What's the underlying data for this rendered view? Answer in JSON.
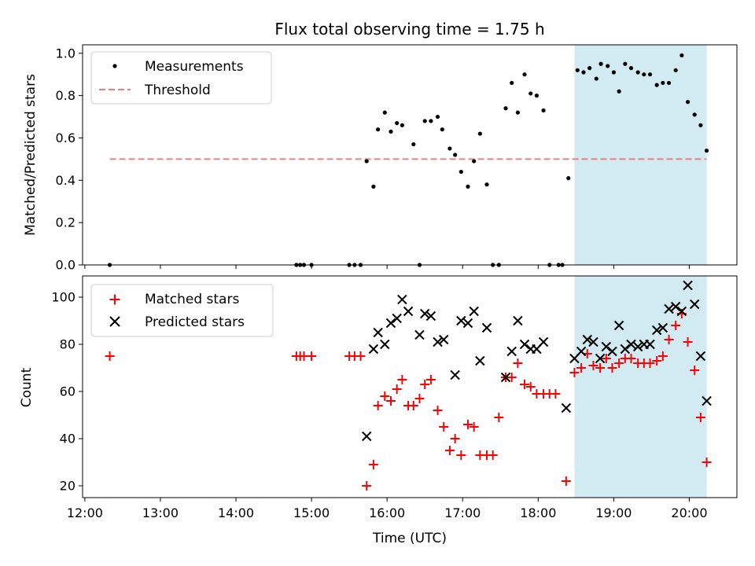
{
  "title": "Flux total observing time = 1.75 h",
  "xlabel": "Time (UTC)",
  "x_ticks": [
    "12:00",
    "13:00",
    "14:00",
    "15:00",
    "16:00",
    "17:00",
    "18:00",
    "19:00",
    "20:00"
  ],
  "colors": {
    "measurements": "#000000",
    "threshold": "#f08080",
    "matched": "#ff0000",
    "predicted": "#000000",
    "shaded": "#add8e6"
  },
  "chart_data": [
    {
      "type": "scatter",
      "ylabel": "Matched/Predicted stars",
      "xlim": [
        11.97,
        20.63
      ],
      "ylim": [
        0,
        1.04
      ],
      "y_ticks": [
        "0.0",
        "0.2",
        "0.4",
        "0.6",
        "0.8",
        "1.0"
      ],
      "shaded_region": {
        "x_start": 18.48,
        "x_end": 20.23
      },
      "legend": {
        "position": "upper left",
        "entries": [
          "Measurements",
          "Threshold"
        ]
      },
      "threshold": {
        "name": "Threshold",
        "y": 0.5,
        "x_start": 12.33,
        "x_end": 20.23,
        "style": "dashed"
      },
      "series": [
        {
          "name": "Measurements",
          "marker": "dot",
          "points": [
            [
              12.33,
              0.0
            ],
            [
              14.8,
              0.0
            ],
            [
              14.85,
              0.0
            ],
            [
              14.9,
              0.0
            ],
            [
              15.0,
              0.0
            ],
            [
              15.5,
              0.0
            ],
            [
              15.57,
              0.0
            ],
            [
              15.65,
              0.0
            ],
            [
              15.73,
              0.49
            ],
            [
              15.82,
              0.37
            ],
            [
              15.88,
              0.64
            ],
            [
              15.97,
              0.72
            ],
            [
              16.05,
              0.63
            ],
            [
              16.13,
              0.67
            ],
            [
              16.2,
              0.66
            ],
            [
              16.35,
              0.57
            ],
            [
              16.43,
              0.0
            ],
            [
              16.5,
              0.68
            ],
            [
              16.58,
              0.68
            ],
            [
              16.67,
              0.7
            ],
            [
              16.73,
              0.64
            ],
            [
              16.83,
              0.55
            ],
            [
              16.9,
              0.52
            ],
            [
              16.98,
              0.44
            ],
            [
              17.07,
              0.37
            ],
            [
              17.15,
              0.49
            ],
            [
              17.23,
              0.62
            ],
            [
              17.32,
              0.38
            ],
            [
              17.4,
              0.0
            ],
            [
              17.48,
              0.0
            ],
            [
              17.57,
              0.74
            ],
            [
              17.65,
              0.86
            ],
            [
              17.73,
              0.72
            ],
            [
              17.82,
              0.9
            ],
            [
              17.9,
              0.81
            ],
            [
              17.98,
              0.8
            ],
            [
              18.07,
              0.73
            ],
            [
              18.15,
              0.0
            ],
            [
              18.27,
              0.0
            ],
            [
              18.32,
              0.0
            ],
            [
              18.4,
              0.41
            ],
            [
              18.52,
              0.92
            ],
            [
              18.6,
              0.91
            ],
            [
              18.68,
              0.93
            ],
            [
              18.77,
              0.88
            ],
            [
              18.83,
              0.95
            ],
            [
              18.92,
              0.94
            ],
            [
              19.0,
              0.91
            ],
            [
              19.07,
              0.82
            ],
            [
              19.15,
              0.95
            ],
            [
              19.23,
              0.93
            ],
            [
              19.32,
              0.91
            ],
            [
              19.4,
              0.9
            ],
            [
              19.48,
              0.9
            ],
            [
              19.57,
              0.85
            ],
            [
              19.65,
              0.86
            ],
            [
              19.73,
              0.86
            ],
            [
              19.82,
              0.92
            ],
            [
              19.9,
              0.99
            ],
            [
              19.98,
              0.77
            ],
            [
              20.07,
              0.71
            ],
            [
              20.15,
              0.66
            ],
            [
              20.23,
              0.54
            ]
          ]
        }
      ]
    },
    {
      "type": "scatter",
      "ylabel": "Count",
      "xlim": [
        11.97,
        20.63
      ],
      "ylim": [
        15,
        109
      ],
      "y_ticks": [
        "20",
        "40",
        "60",
        "80",
        "100"
      ],
      "shaded_region": {
        "x_start": 18.48,
        "x_end": 20.23
      },
      "legend": {
        "position": "upper left",
        "entries": [
          "Matched stars",
          "Predicted stars"
        ]
      },
      "series": [
        {
          "name": "Matched stars",
          "marker": "plus",
          "points": [
            [
              12.33,
              75
            ],
            [
              14.8,
              75
            ],
            [
              14.85,
              75
            ],
            [
              14.9,
              75
            ],
            [
              15.0,
              75
            ],
            [
              15.5,
              75
            ],
            [
              15.57,
              75
            ],
            [
              15.65,
              75
            ],
            [
              15.73,
              20
            ],
            [
              15.82,
              29
            ],
            [
              15.88,
              54
            ],
            [
              15.97,
              58
            ],
            [
              16.05,
              56
            ],
            [
              16.13,
              61
            ],
            [
              16.2,
              65
            ],
            [
              16.28,
              54
            ],
            [
              16.35,
              54
            ],
            [
              16.43,
              57
            ],
            [
              16.5,
              63
            ],
            [
              16.58,
              65
            ],
            [
              16.67,
              52
            ],
            [
              16.75,
              45
            ],
            [
              16.83,
              35
            ],
            [
              16.9,
              40
            ],
            [
              16.98,
              33
            ],
            [
              17.07,
              46
            ],
            [
              17.15,
              45
            ],
            [
              17.23,
              33
            ],
            [
              17.32,
              33
            ],
            [
              17.4,
              33
            ],
            [
              17.48,
              49
            ],
            [
              17.57,
              66
            ],
            [
              17.65,
              66
            ],
            [
              17.73,
              72
            ],
            [
              17.82,
              63
            ],
            [
              17.9,
              62
            ],
            [
              17.98,
              59
            ],
            [
              18.07,
              59
            ],
            [
              18.15,
              59
            ],
            [
              18.23,
              59
            ],
            [
              18.37,
              22
            ],
            [
              18.48,
              68
            ],
            [
              18.57,
              70
            ],
            [
              18.65,
              76
            ],
            [
              18.73,
              71
            ],
            [
              18.82,
              70
            ],
            [
              18.9,
              74
            ],
            [
              18.98,
              70
            ],
            [
              19.07,
              72
            ],
            [
              19.15,
              74
            ],
            [
              19.23,
              74
            ],
            [
              19.32,
              72
            ],
            [
              19.4,
              72
            ],
            [
              19.48,
              72
            ],
            [
              19.57,
              73
            ],
            [
              19.65,
              75
            ],
            [
              19.73,
              82
            ],
            [
              19.82,
              88
            ],
            [
              19.9,
              93
            ],
            [
              19.98,
              81
            ],
            [
              20.07,
              69
            ],
            [
              20.15,
              49
            ],
            [
              20.23,
              30
            ]
          ]
        },
        {
          "name": "Predicted stars",
          "marker": "x",
          "points": [
            [
              15.73,
              41
            ],
            [
              15.82,
              78
            ],
            [
              15.88,
              85
            ],
            [
              15.97,
              80
            ],
            [
              16.05,
              89
            ],
            [
              16.13,
              91
            ],
            [
              16.2,
              99
            ],
            [
              16.28,
              94
            ],
            [
              16.43,
              84
            ],
            [
              16.5,
              93
            ],
            [
              16.58,
              92
            ],
            [
              16.67,
              81
            ],
            [
              16.75,
              82
            ],
            [
              16.9,
              67
            ],
            [
              16.98,
              90
            ],
            [
              17.07,
              89
            ],
            [
              17.15,
              94
            ],
            [
              17.23,
              73
            ],
            [
              17.32,
              87
            ],
            [
              17.57,
              66
            ],
            [
              17.65,
              77
            ],
            [
              17.73,
              90
            ],
            [
              17.82,
              80
            ],
            [
              17.9,
              78
            ],
            [
              17.98,
              78
            ],
            [
              18.07,
              81
            ],
            [
              18.37,
              53
            ],
            [
              18.48,
              74
            ],
            [
              18.57,
              77
            ],
            [
              18.65,
              82
            ],
            [
              18.73,
              81
            ],
            [
              18.82,
              74
            ],
            [
              18.9,
              79
            ],
            [
              18.98,
              77
            ],
            [
              19.07,
              88
            ],
            [
              19.15,
              78
            ],
            [
              19.23,
              80
            ],
            [
              19.32,
              79
            ],
            [
              19.4,
              80
            ],
            [
              19.48,
              80
            ],
            [
              19.57,
              86
            ],
            [
              19.65,
              87
            ],
            [
              19.73,
              95
            ],
            [
              19.82,
              96
            ],
            [
              19.9,
              94
            ],
            [
              19.98,
              105
            ],
            [
              20.07,
              97
            ],
            [
              20.15,
              75
            ],
            [
              20.23,
              56
            ]
          ]
        }
      ]
    }
  ]
}
